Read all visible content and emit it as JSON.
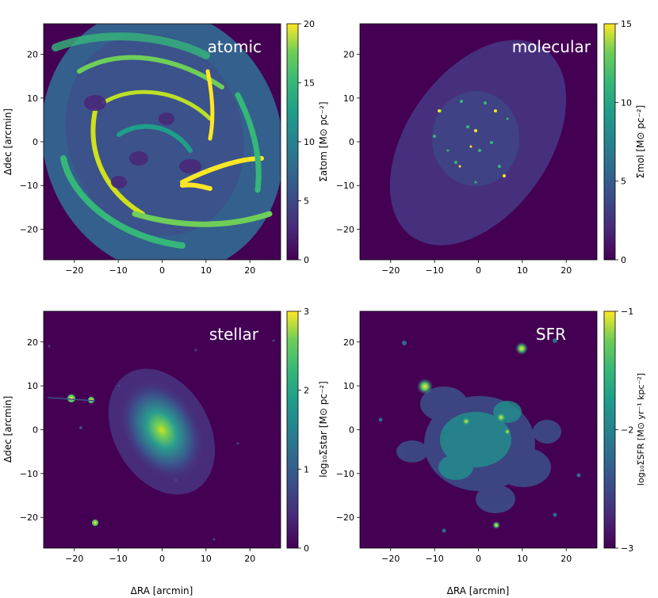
{
  "chart_data": [
    {
      "type": "heatmap",
      "map_label": "atomic",
      "xlabel": "",
      "ylabel": "Δdec [arcmin]",
      "xlim": [
        -27,
        27
      ],
      "ylim": [
        -27,
        27
      ],
      "xticks": [
        -20,
        -10,
        0,
        10,
        20
      ],
      "yticks": [
        -20,
        -10,
        0,
        10,
        20
      ],
      "colorbar": {
        "label": "Σatom [M⊙ pc⁻²]",
        "range": [
          0,
          20
        ],
        "ticks": [
          "0",
          "5",
          "10",
          "15",
          "20"
        ],
        "colormap": "viridis"
      },
      "shape": "tilted-disk",
      "morphology": "spiral filaments"
    },
    {
      "type": "heatmap",
      "map_label": "molecular",
      "xlabel": "",
      "ylabel": "",
      "xlim": [
        -27,
        27
      ],
      "ylim": [
        -27,
        27
      ],
      "xticks": [
        -20,
        -10,
        0,
        10,
        20
      ],
      "yticks": [
        -20,
        -10,
        0,
        10,
        20
      ],
      "colorbar": {
        "label": "Σmol [M⊙ pc⁻²]",
        "range": [
          0,
          15
        ],
        "ticks": [
          "0",
          "5",
          "10",
          "15"
        ],
        "colormap": "viridis"
      },
      "shape": "elliptical-footprint",
      "morphology": "sparse clumps"
    },
    {
      "type": "heatmap",
      "map_label": "stellar",
      "xlabel": "ΔRA [arcmin]",
      "ylabel": "Δdec [arcmin]",
      "xlim": [
        -27,
        27
      ],
      "ylim": [
        -27,
        27
      ],
      "xticks": [
        -20,
        -10,
        0,
        10,
        20
      ],
      "yticks": [
        -20,
        -10,
        0,
        10,
        20
      ],
      "colorbar": {
        "label": "log₁₀Σstar [M⊙ pc⁻²]",
        "range": [
          0,
          3
        ],
        "ticks": [
          "0",
          "1",
          "2",
          "3"
        ],
        "colormap": "viridis"
      },
      "shape": "central-bulge",
      "morphology": "smooth disk with point sources"
    },
    {
      "type": "heatmap",
      "map_label": "SFR",
      "xlabel": "ΔRA [arcmin]",
      "ylabel": "",
      "xlim": [
        -27,
        27
      ],
      "ylim": [
        -27,
        27
      ],
      "xticks": [
        -20,
        -10,
        0,
        10,
        20
      ],
      "yticks": [
        -20,
        -10,
        0,
        10,
        20
      ],
      "colorbar": {
        "label": "log₁₀ΣSFR [M⊙ yr⁻¹ kpc⁻²]",
        "range": [
          -3,
          -1
        ],
        "ticks": [
          "−3",
          "−2",
          "−1"
        ],
        "colormap": "viridis"
      },
      "shape": "patchy",
      "morphology": "star-forming clumps"
    }
  ],
  "colors": {
    "background": "#440154",
    "low": "#482878",
    "mid": "#21918c",
    "high": "#fde725"
  }
}
